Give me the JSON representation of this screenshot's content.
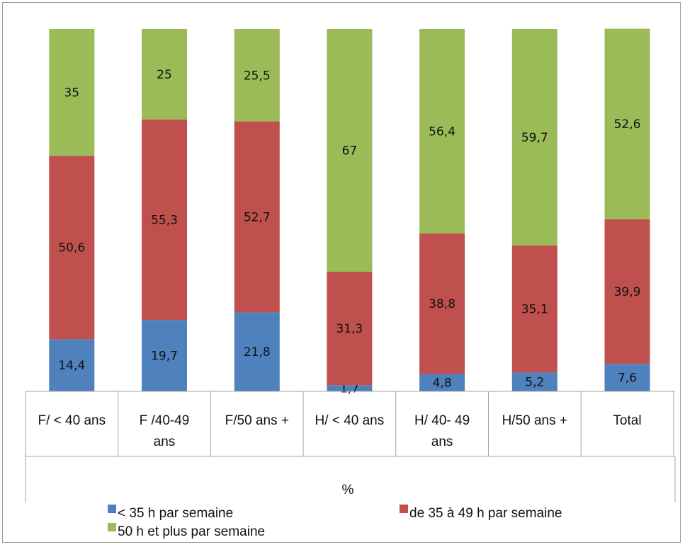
{
  "chart_data": {
    "type": "bar",
    "stacked": true,
    "categories": [
      [
        "F/ < 40 ans"
      ],
      [
        "F /40-49",
        "ans"
      ],
      [
        "F/50 ans  +"
      ],
      [
        "H/ < 40 ans"
      ],
      [
        "H/ 40- 49",
        "ans"
      ],
      [
        "H/50 ans  +"
      ],
      [
        "Total"
      ]
    ],
    "series": [
      {
        "name": "< 35 h par semaine",
        "color": "#4f81bd",
        "values": [
          14.4,
          19.7,
          21.8,
          1.7,
          4.8,
          5.2,
          7.6
        ],
        "labels": [
          "14,4",
          "19,7",
          "21,8",
          "1,7",
          "4,8",
          "5,2",
          "7,6"
        ]
      },
      {
        "name": "de 35 à 49 h par semaine",
        "color": "#c0504d",
        "values": [
          50.6,
          55.3,
          52.7,
          31.3,
          38.8,
          35.1,
          39.9
        ],
        "labels": [
          "50,6",
          "55,3",
          "52,7",
          "31,3",
          "38,8",
          "35,1",
          "39,9"
        ]
      },
      {
        "name": "50 h et plus par semaine",
        "color": "#9bbb59",
        "values": [
          35,
          25,
          25.5,
          67,
          56.4,
          59.7,
          52.6
        ],
        "labels": [
          "35",
          "25",
          "25,5",
          "67",
          "56,4",
          "59,7",
          "52,6"
        ]
      }
    ],
    "xlabel": "%",
    "ylim": [
      0,
      100
    ],
    "legend_position": "bottom"
  }
}
